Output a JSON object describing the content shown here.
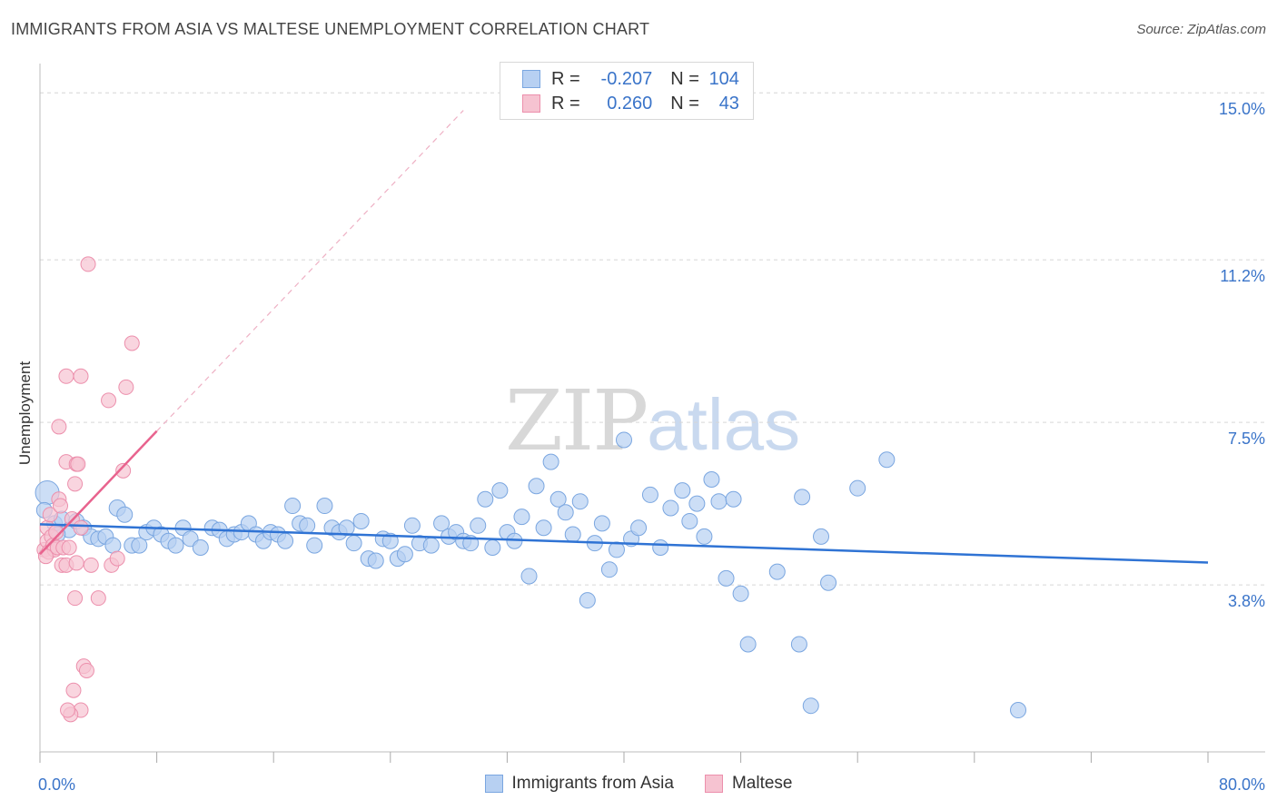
{
  "title": "IMMIGRANTS FROM ASIA VS MALTESE UNEMPLOYMENT CORRELATION CHART",
  "source": "Source: ZipAtlas.com",
  "watermark": {
    "zip": "ZIP",
    "atlas": "atlas"
  },
  "legend": {
    "rows": [
      {
        "r_label": "R =",
        "r_value": "-0.207",
        "n_label": "N =",
        "n_value": "104"
      },
      {
        "r_label": "R =",
        "r_value": "0.260",
        "n_label": "N =",
        "n_value": "43"
      }
    ]
  },
  "bottom_legend": [
    "Immigrants from Asia",
    "Maltese"
  ],
  "colors": {
    "blue_fill": "#b7d0f2",
    "blue_stroke": "#7aa6e0",
    "blue_line": "#2f73d4",
    "pink_fill": "#f6c3d1",
    "pink_stroke": "#ec8fac",
    "pink_line": "#e8638e",
    "grid": "#d6d6d6",
    "tick_text": "#3a74c9"
  },
  "chart_data": {
    "type": "scatter",
    "title": "IMMIGRANTS FROM ASIA VS MALTESE UNEMPLOYMENT CORRELATION CHART",
    "xlabel": "",
    "ylabel": "Unemployment",
    "xlim": [
      0,
      80
    ],
    "ylim": [
      0,
      15.5
    ],
    "x_tick_labels": [
      "0.0%",
      "80.0%"
    ],
    "y_ticks": [
      3.8,
      7.5,
      11.2,
      15.0
    ],
    "y_tick_labels": [
      "3.8%",
      "7.5%",
      "11.2%",
      "15.0%"
    ],
    "series": [
      {
        "name": "Immigrants from Asia",
        "r": -0.207,
        "n": 104,
        "trend": {
          "x": [
            0,
            80
          ],
          "y": [
            5.18,
            4.31
          ]
        },
        "points": [
          [
            0.5,
            5.9
          ],
          [
            1,
            5.2
          ],
          [
            1.5,
            5.3
          ],
          [
            2,
            5.05
          ],
          [
            2.5,
            5.25
          ],
          [
            3,
            5.1
          ],
          [
            3.5,
            4.9
          ],
          [
            4,
            4.85
          ],
          [
            4.5,
            4.9
          ],
          [
            5,
            4.7
          ],
          [
            5.3,
            5.55
          ],
          [
            5.8,
            5.4
          ],
          [
            6.3,
            4.7
          ],
          [
            6.8,
            4.7
          ],
          [
            7.3,
            5.0
          ],
          [
            7.8,
            5.1
          ],
          [
            8.3,
            4.95
          ],
          [
            8.8,
            4.8
          ],
          [
            9.3,
            4.7
          ],
          [
            9.8,
            5.1
          ],
          [
            10.3,
            4.85
          ],
          [
            11,
            4.65
          ],
          [
            11.8,
            5.1
          ],
          [
            12.3,
            5.05
          ],
          [
            12.8,
            4.85
          ],
          [
            13.3,
            4.95
          ],
          [
            13.8,
            5.0
          ],
          [
            14.3,
            5.2
          ],
          [
            14.8,
            4.95
          ],
          [
            15.3,
            4.8
          ],
          [
            15.8,
            5.0
          ],
          [
            16.3,
            4.95
          ],
          [
            16.8,
            4.8
          ],
          [
            17.3,
            5.6
          ],
          [
            17.8,
            5.2
          ],
          [
            18.3,
            5.15
          ],
          [
            18.8,
            4.7
          ],
          [
            19.5,
            5.6
          ],
          [
            20,
            5.1
          ],
          [
            20.5,
            5.0
          ],
          [
            21,
            5.1
          ],
          [
            21.5,
            4.75
          ],
          [
            22,
            5.25
          ],
          [
            22.5,
            4.4
          ],
          [
            23,
            4.35
          ],
          [
            23.5,
            4.85
          ],
          [
            24,
            4.8
          ],
          [
            24.5,
            4.4
          ],
          [
            25,
            4.5
          ],
          [
            25.5,
            5.15
          ],
          [
            26,
            4.75
          ],
          [
            26.8,
            4.7
          ],
          [
            27.5,
            5.2
          ],
          [
            28,
            4.9
          ],
          [
            28.5,
            5.0
          ],
          [
            29,
            4.8
          ],
          [
            29.5,
            4.75
          ],
          [
            30,
            5.15
          ],
          [
            30.5,
            5.75
          ],
          [
            31,
            4.65
          ],
          [
            31.5,
            5.95
          ],
          [
            32,
            5.0
          ],
          [
            32.5,
            4.8
          ],
          [
            33,
            5.35
          ],
          [
            33.5,
            4.0
          ],
          [
            34,
            6.05
          ],
          [
            34.5,
            5.1
          ],
          [
            35,
            6.6
          ],
          [
            35.5,
            5.75
          ],
          [
            36,
            5.45
          ],
          [
            36.5,
            4.95
          ],
          [
            37,
            5.7
          ],
          [
            37.5,
            3.45
          ],
          [
            38,
            4.75
          ],
          [
            38.5,
            5.2
          ],
          [
            39,
            4.15
          ],
          [
            39.5,
            4.6
          ],
          [
            40,
            7.1
          ],
          [
            40.5,
            4.85
          ],
          [
            41,
            5.1
          ],
          [
            41.8,
            5.85
          ],
          [
            42.5,
            4.65
          ],
          [
            43.2,
            5.55
          ],
          [
            44,
            5.95
          ],
          [
            44.5,
            5.25
          ],
          [
            45,
            5.65
          ],
          [
            45.5,
            4.9
          ],
          [
            46,
            6.2
          ],
          [
            46.5,
            5.7
          ],
          [
            47,
            3.95
          ],
          [
            47.5,
            5.75
          ],
          [
            48,
            3.6
          ],
          [
            48.5,
            2.45
          ],
          [
            50.5,
            4.1
          ],
          [
            52,
            2.45
          ],
          [
            52.2,
            5.8
          ],
          [
            52.8,
            1.05
          ],
          [
            53.5,
            4.9
          ],
          [
            54,
            3.85
          ],
          [
            56,
            6.0
          ],
          [
            58,
            6.65
          ],
          [
            67,
            0.95
          ],
          [
            0.3,
            5.5
          ],
          [
            1.2,
            4.95
          ]
        ]
      },
      {
        "name": "Maltese",
        "r": 0.26,
        "n": 43,
        "trend": {
          "x": [
            0,
            8
          ],
          "y": [
            4.5,
            7.3
          ]
        },
        "trend_extended": {
          "x": [
            8,
            29
          ],
          "y": [
            7.3,
            14.6
          ]
        },
        "points": [
          [
            0.3,
            4.6
          ],
          [
            0.5,
            4.8
          ],
          [
            0.5,
            5.1
          ],
          [
            0.6,
            4.55
          ],
          [
            0.7,
            5.4
          ],
          [
            0.8,
            4.9
          ],
          [
            0.9,
            4.7
          ],
          [
            1.0,
            4.6
          ],
          [
            1.1,
            5.0
          ],
          [
            1.2,
            4.65
          ],
          [
            1.3,
            5.75
          ],
          [
            1.4,
            5.6
          ],
          [
            1.5,
            4.25
          ],
          [
            1.6,
            4.65
          ],
          [
            1.8,
            4.25
          ],
          [
            2.0,
            4.65
          ],
          [
            2.2,
            5.3
          ],
          [
            2.4,
            6.1
          ],
          [
            2.5,
            4.3
          ],
          [
            2.8,
            5.1
          ],
          [
            3.0,
            1.95
          ],
          [
            3.2,
            1.85
          ],
          [
            3.5,
            4.25
          ],
          [
            3.3,
            11.1
          ],
          [
            1.3,
            7.4
          ],
          [
            1.8,
            6.6
          ],
          [
            2.5,
            6.55
          ],
          [
            2.6,
            6.55
          ],
          [
            1.8,
            8.55
          ],
          [
            2.8,
            8.55
          ],
          [
            4.7,
            8.0
          ],
          [
            5.9,
            8.3
          ],
          [
            6.3,
            9.3
          ],
          [
            5.7,
            6.4
          ],
          [
            2.8,
            0.95
          ],
          [
            2.1,
            0.85
          ],
          [
            1.9,
            0.95
          ],
          [
            2.3,
            1.4
          ],
          [
            0.4,
            4.45
          ],
          [
            4.9,
            4.25
          ],
          [
            5.3,
            4.4
          ],
          [
            4.0,
            3.5
          ],
          [
            2.4,
            3.5
          ]
        ]
      }
    ]
  }
}
